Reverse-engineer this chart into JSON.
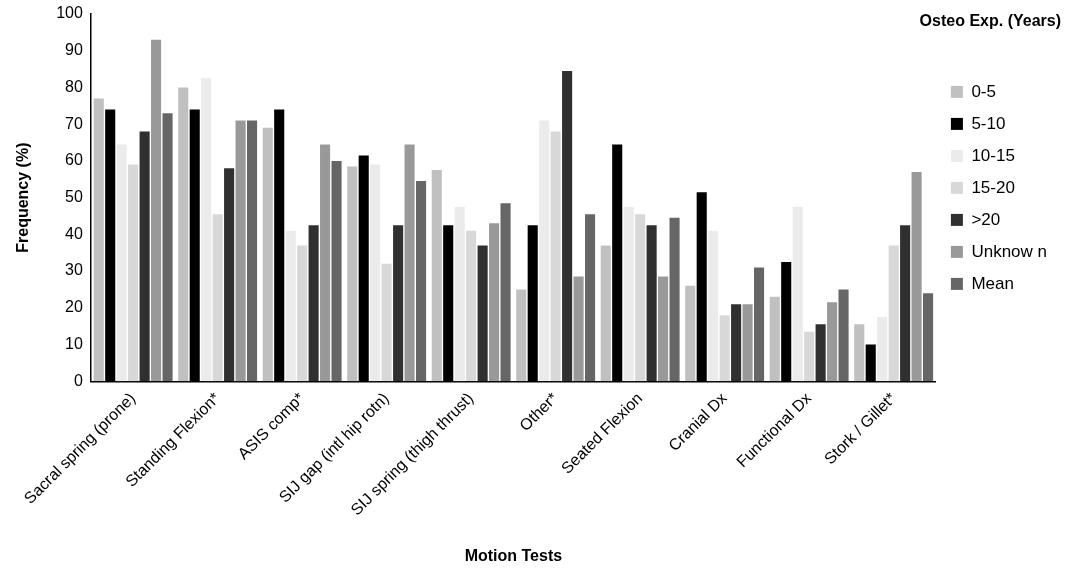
{
  "chart_data": {
    "type": "bar",
    "xlabel": "Motion Tests",
    "ylabel": "Frequency (%)",
    "legend_title": "Osteo Exp. (Years)",
    "categories": [
      "Sacral spring (prone)",
      "Standing Flexion*",
      "ASIS comp*",
      "SIJ gap (intl hip rotn)",
      "SIJ spring (thigh thrust)",
      "Other*",
      "Seated Flexion",
      "Cranial Dx",
      "Functional Dx",
      "Stork / Gillet*"
    ],
    "series": [
      {
        "name": "0-5",
        "color": "#c0c0c0",
        "values": [
          77,
          80,
          69,
          58.5,
          57.5,
          25,
          37,
          26,
          23,
          15.5
        ]
      },
      {
        "name": "5-10",
        "color": "#000000",
        "values": [
          74,
          74,
          74,
          61.5,
          42.5,
          42.5,
          64.5,
          51.5,
          32.5,
          10
        ]
      },
      {
        "name": "10-15",
        "color": "#ebebeb",
        "values": [
          64.5,
          82.5,
          41,
          59,
          47.5,
          71,
          47.5,
          41,
          47.5,
          17.5
        ]
      },
      {
        "name": "15-20",
        "color": "#d8d8d8",
        "values": [
          59,
          45.5,
          37,
          32,
          41,
          68,
          45.5,
          18,
          13.5,
          37
        ]
      },
      {
        "name": ">20",
        "color": "#303030",
        "values": [
          68,
          58,
          42.5,
          42.5,
          37,
          84.5,
          42.5,
          21,
          15.5,
          42.5
        ]
      },
      {
        "name": "Unknow n",
        "color": "#999999",
        "values": [
          93,
          71,
          64.5,
          64.5,
          43,
          28.5,
          28.5,
          21,
          21.5,
          57
        ]
      },
      {
        "name": "Mean",
        "color": "#666666",
        "values": [
          73,
          71,
          60,
          54.5,
          48.5,
          45.5,
          44.5,
          31,
          25,
          24
        ]
      }
    ],
    "ylim": [
      0,
      100
    ],
    "yticks": [
      0,
      10,
      20,
      30,
      40,
      50,
      60,
      70,
      80,
      90,
      100
    ],
    "grid": false,
    "legend": "right"
  }
}
